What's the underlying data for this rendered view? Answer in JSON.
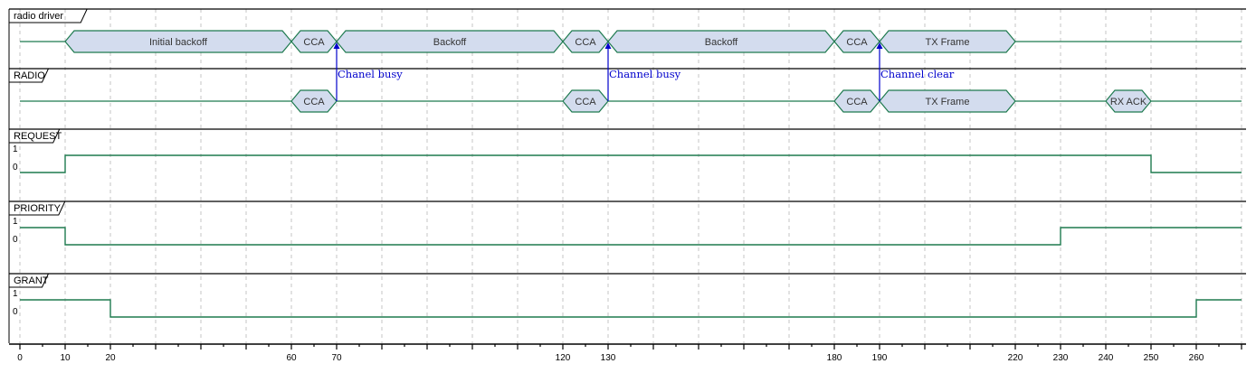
{
  "colors": {
    "signal": "#1e7a4f",
    "state_fill": "#d3dcee",
    "grid": "#c4c4c4",
    "border": "#000000",
    "note": "#0000cc"
  },
  "axis": {
    "min": 0,
    "max": 270,
    "major_every": 10,
    "minor_every": 5
  },
  "lanes": [
    {
      "id": "radio-driver",
      "title": "radio driver",
      "kind": "state",
      "states": [
        {
          "start": 10,
          "end": 60,
          "label": "Initial backoff"
        },
        {
          "start": 60,
          "end": 70,
          "label": "CCA"
        },
        {
          "start": 70,
          "end": 120,
          "label": "Backoff"
        },
        {
          "start": 120,
          "end": 130,
          "label": "CCA"
        },
        {
          "start": 130,
          "end": 180,
          "label": "Backoff"
        },
        {
          "start": 180,
          "end": 190,
          "label": "CCA"
        },
        {
          "start": 190,
          "end": 220,
          "label": "TX Frame"
        }
      ]
    },
    {
      "id": "radio",
      "title": "RADIO",
      "kind": "state",
      "states": [
        {
          "start": 60,
          "end": 70,
          "label": "CCA"
        },
        {
          "start": 120,
          "end": 130,
          "label": "CCA"
        },
        {
          "start": 180,
          "end": 190,
          "label": "CCA"
        },
        {
          "start": 190,
          "end": 220,
          "label": "TX Frame"
        },
        {
          "start": 240,
          "end": 250,
          "label": "RX ACK"
        }
      ]
    },
    {
      "id": "request",
      "title": "REQUEST",
      "kind": "binary",
      "high_label": "1",
      "low_label": "0",
      "initial": 0,
      "transitions": [
        {
          "t": 10,
          "value": 1
        },
        {
          "t": 250,
          "value": 0
        }
      ]
    },
    {
      "id": "priority",
      "title": "PRIORITY",
      "kind": "binary",
      "high_label": "1",
      "low_label": "0",
      "initial": 1,
      "transitions": [
        {
          "t": 10,
          "value": 0
        },
        {
          "t": 230,
          "value": 1
        }
      ]
    },
    {
      "id": "grant",
      "title": "GRANT",
      "kind": "binary",
      "high_label": "1",
      "low_label": "0",
      "initial": 1,
      "transitions": [
        {
          "t": 20,
          "value": 0
        },
        {
          "t": 260,
          "value": 1
        }
      ]
    }
  ],
  "notes": [
    {
      "t": 70,
      "text": "Chanel busy"
    },
    {
      "t": 130,
      "text": "Channel busy"
    },
    {
      "t": 190,
      "text": "Channel clear"
    }
  ],
  "tick_labels": [
    0,
    10,
    20,
    60,
    70,
    120,
    130,
    180,
    190,
    220,
    230,
    240,
    250,
    260
  ]
}
